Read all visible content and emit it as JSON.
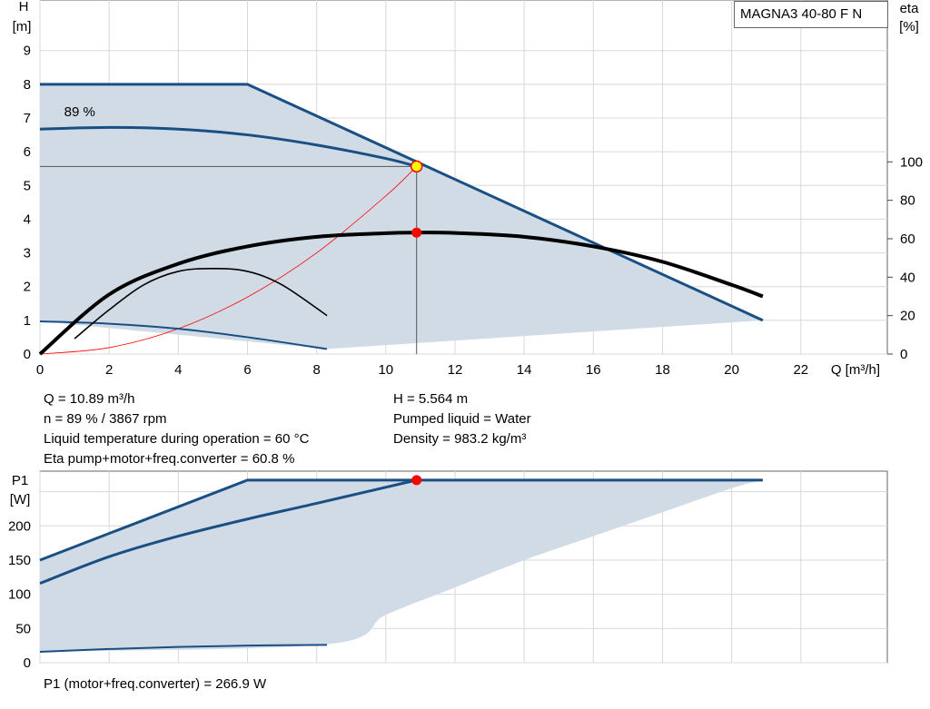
{
  "model_label": "MAGNA3 40-80 F N",
  "info_left": [
    "Q = 10.89 m³/h",
    "n = 89 % / 3867 rpm",
    "Liquid temperature during operation = 60 °C",
    "Eta pump+motor+freq.converter = 60.8 %"
  ],
  "info_right": [
    "H = 5.564 m",
    "Pumped liquid = Water",
    "Density = 983.2 kg/m³"
  ],
  "power_info": "P1 (motor+freq.converter) = 266.9 W",
  "colors": {
    "curve": "#1a4f84",
    "fill": "#d0dbe6",
    "eta": "#000000",
    "system": "#ff0000",
    "duty": "#ff0000",
    "duty_yellow": "#ffff00"
  },
  "chart_data": [
    {
      "type": "line",
      "name": "head",
      "ylabel_name": "H",
      "ylabel_unit": "[m]",
      "xlabel": "Q [m³/h]",
      "y2label_name": "eta",
      "y2label_unit": "[%]",
      "xlim": [
        0,
        24.5
      ],
      "ylim": [
        0,
        10.5
      ],
      "y2lim": [
        0,
        100
      ],
      "x_ticks": [
        0,
        2,
        4,
        6,
        8,
        10,
        12,
        14,
        16,
        18,
        20,
        22
      ],
      "y_ticks": [
        0,
        1,
        2,
        3,
        4,
        5,
        6,
        7,
        8,
        9
      ],
      "y2_ticks": [
        0,
        20,
        40,
        60,
        80,
        100
      ],
      "grid": true,
      "speed_label": "89 %",
      "envelope": {
        "x": [
          0,
          6,
          20.9,
          8.3,
          0
        ],
        "y": [
          8,
          8,
          1.0,
          0.15,
          0.97
        ]
      },
      "series": [
        {
          "x": [
            0,
            2,
            4,
            6,
            8,
            10.89,
            14,
            18,
            20.9
          ],
          "y": [
            8,
            8,
            8,
            8,
            7.1,
            5.564,
            3.76,
            1.7,
            1.0
          ]
        },
        {
          "x": [
            0,
            2,
            4,
            6,
            8,
            10,
            10.89
          ],
          "y": [
            6.67,
            6.72,
            6.67,
            6.5,
            6.2,
            5.8,
            5.564
          ]
        },
        {
          "x": [
            0,
            2,
            4,
            6,
            8.3
          ],
          "y": [
            0.97,
            0.9,
            0.75,
            0.5,
            0.15
          ]
        }
      ],
      "eta_curves": [
        {
          "x": [
            0,
            2,
            4,
            6,
            8,
            10,
            10.89,
            12,
            14,
            16,
            18,
            20,
            20.9
          ],
          "y": [
            0,
            31,
            47,
            56,
            61,
            62.9,
            63.2,
            63.0,
            61,
            56,
            48,
            36,
            30
          ]
        },
        {
          "x": [
            1,
            2,
            3,
            4,
            5,
            6,
            7,
            8.3
          ],
          "y": [
            8,
            23,
            36,
            43,
            44.5,
            43,
            36,
            20
          ]
        }
      ],
      "system_curve": {
        "x": [
          0,
          2,
          4,
          6,
          8,
          10,
          10.89
        ],
        "y": [
          0,
          0.19,
          0.75,
          1.69,
          3.0,
          4.69,
          5.564
        ]
      },
      "duty_point": {
        "x": 10.89,
        "y": 5.564,
        "eta": 63.2
      }
    },
    {
      "type": "line",
      "name": "power",
      "ylabel_name": "P1",
      "ylabel_unit": "[W]",
      "xlim": [
        0,
        24.5
      ],
      "ylim": [
        0,
        280
      ],
      "y_ticks": [
        0,
        50,
        100,
        150,
        200
      ],
      "grid": true,
      "envelope": {
        "x": [
          0,
          6,
          20.9,
          20.0,
          18,
          16,
          14,
          12,
          10,
          8.3,
          0
        ],
        "y": [
          150,
          266.9,
          266.9,
          255,
          220,
          185,
          150,
          110,
          70,
          27,
          16
        ]
      },
      "series": [
        {
          "x": [
            0,
            6,
            10.89,
            20.9
          ],
          "y": [
            150,
            266.9,
            266.9,
            266.9
          ]
        },
        {
          "x": [
            0,
            2,
            4,
            6,
            8,
            10.89
          ],
          "y": [
            116,
            155,
            185,
            210,
            233,
            266.9
          ]
        },
        {
          "x": [
            0,
            2,
            4,
            6,
            8.3
          ],
          "y": [
            16,
            20,
            23,
            25,
            26
          ]
        }
      ],
      "duty_point": {
        "x": 10.89,
        "y": 266.9
      }
    }
  ]
}
